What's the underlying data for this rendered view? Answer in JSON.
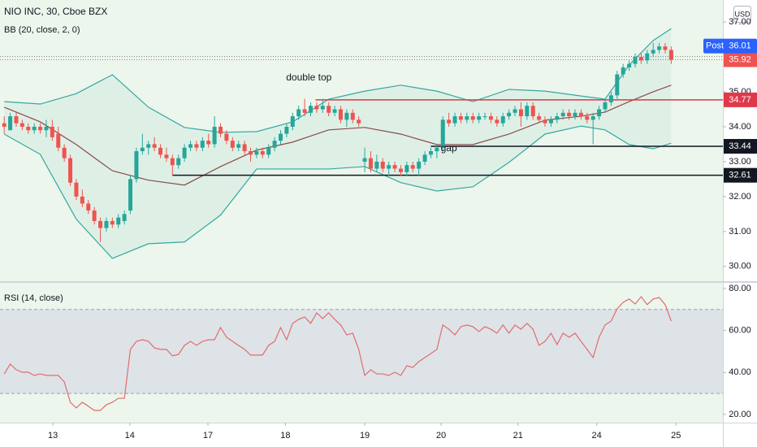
{
  "chart_data": [
    {
      "type": "candlestick",
      "title": "NIO INC, 30, Cboe BZX",
      "indicator": "BB (20, close, 2, 0)",
      "currency": "USD",
      "up_color": "#26a69a",
      "down_color": "#ef5350",
      "candles": [
        [
          34.1,
          34.3,
          33.8,
          34.0
        ],
        [
          33.9,
          34.4,
          33.9,
          34.3
        ],
        [
          34.3,
          34.4,
          34.0,
          34.1
        ],
        [
          34.1,
          34.2,
          33.9,
          34.0
        ],
        [
          34.0,
          34.1,
          33.8,
          33.9
        ],
        [
          33.9,
          34.1,
          33.8,
          34.0
        ],
        [
          34.0,
          34.1,
          33.8,
          33.9
        ],
        [
          33.9,
          34.2,
          33.7,
          34.0
        ],
        [
          34.0,
          34.2,
          33.6,
          33.7
        ],
        [
          33.8,
          34.0,
          33.3,
          33.4
        ],
        [
          33.4,
          33.5,
          33.0,
          33.1
        ],
        [
          33.1,
          33.2,
          32.3,
          32.4
        ],
        [
          32.4,
          32.5,
          31.9,
          32.0
        ],
        [
          32.0,
          32.2,
          31.7,
          31.8
        ],
        [
          31.8,
          31.9,
          31.5,
          31.6
        ],
        [
          31.6,
          31.7,
          31.2,
          31.3
        ],
        [
          31.3,
          31.4,
          30.7,
          31.1
        ],
        [
          31.1,
          31.4,
          31.0,
          31.3
        ],
        [
          31.3,
          31.4,
          31.1,
          31.2
        ],
        [
          31.2,
          31.5,
          31.1,
          31.4
        ],
        [
          31.3,
          31.6,
          31.2,
          31.5
        ],
        [
          31.6,
          32.6,
          31.5,
          32.5
        ],
        [
          32.5,
          33.4,
          32.4,
          33.3
        ],
        [
          33.3,
          33.8,
          33.2,
          33.4
        ],
        [
          33.4,
          33.6,
          33.2,
          33.5
        ],
        [
          33.5,
          33.7,
          33.3,
          33.4
        ],
        [
          33.4,
          33.5,
          33.1,
          33.2
        ],
        [
          33.2,
          33.4,
          33.0,
          33.1
        ],
        [
          33.1,
          33.2,
          32.6,
          32.9
        ],
        [
          32.9,
          33.2,
          32.8,
          33.1
        ],
        [
          33.1,
          33.5,
          33.0,
          33.4
        ],
        [
          33.4,
          33.6,
          33.3,
          33.5
        ],
        [
          33.5,
          33.6,
          33.3,
          33.4
        ],
        [
          33.4,
          33.7,
          33.3,
          33.6
        ],
        [
          33.6,
          33.8,
          33.4,
          33.5
        ],
        [
          33.5,
          34.3,
          33.4,
          34.0
        ],
        [
          34.0,
          34.1,
          33.7,
          33.8
        ],
        [
          33.8,
          33.9,
          33.5,
          33.6
        ],
        [
          33.6,
          33.7,
          33.3,
          33.4
        ],
        [
          33.4,
          33.6,
          33.3,
          33.5
        ],
        [
          33.5,
          33.6,
          33.2,
          33.3
        ],
        [
          33.3,
          33.4,
          33.0,
          33.2
        ],
        [
          33.2,
          33.4,
          33.1,
          33.3
        ],
        [
          33.3,
          33.4,
          33.1,
          33.2
        ],
        [
          33.2,
          33.5,
          33.1,
          33.4
        ],
        [
          33.4,
          33.7,
          33.3,
          33.6
        ],
        [
          33.6,
          33.9,
          33.5,
          33.8
        ],
        [
          33.8,
          34.1,
          33.7,
          34.0
        ],
        [
          34.0,
          34.4,
          33.9,
          34.3
        ],
        [
          34.3,
          34.6,
          34.2,
          34.5
        ],
        [
          34.5,
          34.8,
          34.3,
          34.4
        ],
        [
          34.4,
          34.7,
          34.3,
          34.6
        ],
        [
          34.6,
          34.7,
          34.4,
          34.5
        ],
        [
          34.5,
          34.8,
          34.4,
          34.6
        ],
        [
          34.6,
          34.7,
          34.3,
          34.4
        ],
        [
          34.4,
          34.6,
          34.3,
          34.5
        ],
        [
          34.5,
          34.6,
          34.1,
          34.2
        ],
        [
          34.2,
          34.5,
          34.0,
          34.4
        ],
        [
          34.4,
          34.5,
          34.1,
          34.2
        ],
        [
          34.2,
          34.3,
          34.0,
          34.1
        ],
        [
          33.0,
          33.4,
          32.7,
          33.1
        ],
        [
          33.1,
          33.3,
          32.7,
          32.8
        ],
        [
          32.8,
          33.2,
          32.7,
          33.0
        ],
        [
          33.0,
          33.1,
          32.7,
          32.8
        ],
        [
          32.8,
          33.0,
          32.6,
          32.9
        ],
        [
          32.9,
          33.0,
          32.7,
          32.8
        ],
        [
          32.8,
          32.9,
          32.6,
          32.7
        ],
        [
          32.7,
          33.0,
          32.6,
          32.9
        ],
        [
          32.9,
          33.0,
          32.7,
          32.8
        ],
        [
          32.8,
          33.1,
          32.6,
          33.0
        ],
        [
          33.0,
          33.3,
          32.9,
          33.2
        ],
        [
          33.2,
          33.4,
          33.1,
          33.3
        ],
        [
          33.3,
          33.5,
          33.1,
          33.4
        ],
        [
          33.4,
          34.3,
          33.3,
          34.2
        ],
        [
          34.2,
          34.4,
          34.0,
          34.1
        ],
        [
          34.1,
          34.4,
          34.0,
          34.3
        ],
        [
          34.3,
          34.4,
          34.1,
          34.2
        ],
        [
          34.2,
          34.4,
          34.1,
          34.3
        ],
        [
          34.3,
          34.4,
          34.1,
          34.2
        ],
        [
          34.2,
          34.4,
          34.1,
          34.3
        ],
        [
          34.3,
          34.4,
          34.2,
          34.3
        ],
        [
          34.3,
          34.4,
          34.1,
          34.2
        ],
        [
          34.2,
          34.3,
          34.0,
          34.1
        ],
        [
          34.1,
          34.4,
          34.0,
          34.3
        ],
        [
          34.3,
          34.5,
          34.2,
          34.4
        ],
        [
          34.4,
          34.6,
          34.3,
          34.5
        ],
        [
          34.5,
          34.7,
          34.0,
          34.3
        ],
        [
          34.3,
          34.7,
          34.2,
          34.6
        ],
        [
          34.6,
          34.7,
          34.2,
          34.3
        ],
        [
          34.3,
          34.4,
          34.1,
          34.2
        ],
        [
          34.2,
          34.3,
          34.0,
          34.1
        ],
        [
          34.1,
          34.3,
          34.0,
          34.2
        ],
        [
          34.2,
          34.4,
          34.1,
          34.3
        ],
        [
          34.3,
          34.5,
          34.2,
          34.4
        ],
        [
          34.4,
          34.5,
          34.2,
          34.3
        ],
        [
          34.3,
          34.5,
          34.2,
          34.4
        ],
        [
          34.4,
          34.5,
          34.2,
          34.3
        ],
        [
          34.3,
          34.4,
          34.1,
          34.2
        ],
        [
          34.2,
          34.4,
          33.5,
          34.3
        ],
        [
          34.3,
          34.6,
          34.2,
          34.5
        ],
        [
          34.5,
          34.8,
          34.4,
          34.7
        ],
        [
          34.7,
          35.0,
          34.6,
          34.9
        ],
        [
          34.9,
          35.6,
          34.8,
          35.5
        ],
        [
          35.5,
          35.8,
          35.4,
          35.7
        ],
        [
          35.7,
          35.9,
          35.6,
          35.8
        ],
        [
          35.8,
          36.1,
          35.7,
          36.0
        ],
        [
          36.0,
          36.1,
          35.8,
          35.9
        ],
        [
          35.9,
          36.2,
          35.8,
          36.1
        ],
        [
          36.1,
          36.4,
          36.0,
          36.2
        ],
        [
          36.2,
          36.4,
          36.1,
          36.3
        ],
        [
          36.3,
          36.4,
          36.1,
          36.2
        ],
        [
          36.2,
          36.3,
          35.8,
          35.92
        ]
      ],
      "bands": {
        "x": [
          0,
          6,
          12,
          18,
          24,
          30,
          36,
          42,
          48,
          54,
          60,
          66,
          72,
          78,
          84,
          90,
          96,
          100,
          104,
          108,
          111
        ],
        "upper": [
          34.72,
          34.65,
          34.95,
          35.49,
          34.56,
          33.98,
          33.84,
          33.86,
          34.14,
          34.79,
          35.02,
          35.19,
          35.02,
          34.72,
          35.07,
          35.02,
          34.88,
          34.79,
          35.77,
          36.47,
          36.81
        ],
        "basis": [
          34.56,
          34.14,
          33.49,
          32.74,
          32.47,
          32.33,
          32.86,
          33.33,
          33.56,
          33.91,
          33.98,
          33.79,
          33.49,
          33.49,
          33.79,
          34.19,
          34.3,
          34.42,
          34.72,
          35.0,
          35.19
        ],
        "lower": [
          33.79,
          33.21,
          31.35,
          30.23,
          30.65,
          30.7,
          31.47,
          32.79,
          32.79,
          32.79,
          32.86,
          32.4,
          32.16,
          32.28,
          32.98,
          33.79,
          34.02,
          33.91,
          33.49,
          33.37,
          33.53
        ],
        "band_color": "#35a7a1",
        "basis_color": "#8b4a4a"
      },
      "levels": [
        {
          "value": 34.77,
          "from": 51.8,
          "color": "#e0384a"
        },
        {
          "value": 33.44,
          "from": 71,
          "color": "#131722"
        },
        {
          "value": 32.61,
          "from": 28,
          "color": "#131722"
        }
      ],
      "last": {
        "value": 35.92,
        "color": "#ef5350"
      },
      "post": {
        "label": "Post",
        "value": 36.01,
        "color": "#2962ff"
      },
      "annotations": [
        {
          "text": "double top",
          "x": 50.7,
          "y": 35.4
        },
        {
          "text": "gap",
          "x": 74,
          "y": 33.37
        }
      ],
      "xlim": [
        -0.7,
        119.6
      ],
      "ylim": [
        29.6,
        37.63
      ],
      "yticks": [
        {
          "value": 30,
          "label": "30.00"
        },
        {
          "value": 31,
          "label": "31.00"
        },
        {
          "value": 32,
          "label": "32.00"
        },
        {
          "value": 33,
          "label": "33.00"
        },
        {
          "value": 34,
          "label": "34.00"
        },
        {
          "value": 35,
          "label": "35.00"
        },
        {
          "value": 37,
          "label": "37.00"
        }
      ]
    },
    {
      "type": "line",
      "title": "RSI (14, close)",
      "color": "#e06c6c",
      "values": [
        39.3,
        44.0,
        41.3,
        40.1,
        40.1,
        38.6,
        39.3,
        38.6,
        38.6,
        38.6,
        35.5,
        25.8,
        23.1,
        25.8,
        23.9,
        21.9,
        21.9,
        24.6,
        25.8,
        27.7,
        27.7,
        51.0,
        54.8,
        55.6,
        54.8,
        51.7,
        51.0,
        51.0,
        47.9,
        48.6,
        52.9,
        54.8,
        52.9,
        54.8,
        55.6,
        55.6,
        61.4,
        56.8,
        54.8,
        52.9,
        51.0,
        48.3,
        48.3,
        48.3,
        52.9,
        54.8,
        61.4,
        55.6,
        63.4,
        65.3,
        66.4,
        63.4,
        68.4,
        65.7,
        68.4,
        65.3,
        62.6,
        57.9,
        58.7,
        51.0,
        38.6,
        41.3,
        39.3,
        39.3,
        38.6,
        40.1,
        38.6,
        43.2,
        42.4,
        45.2,
        47.1,
        49.0,
        51.0,
        62.6,
        60.6,
        57.9,
        61.8,
        62.6,
        61.8,
        59.5,
        61.8,
        60.6,
        58.7,
        62.6,
        58.7,
        62.6,
        60.6,
        63.4,
        60.6,
        52.9,
        54.8,
        58.7,
        53.3,
        58.7,
        56.8,
        58.7,
        54.8,
        51.0,
        47.1,
        56.8,
        62.6,
        64.5,
        70.3,
        73.4,
        75.0,
        72.6,
        76.1,
        72.3,
        75.0,
        75.7,
        72.3,
        64.5
      ],
      "levels": [
        70,
        30
      ],
      "band_color": "#7e57c2",
      "xlim": [
        -0.7,
        119.6
      ],
      "xticks": [
        {
          "value": 8.1,
          "label": "13"
        },
        {
          "value": 20.9,
          "label": "14"
        },
        {
          "value": 33.9,
          "label": "17"
        },
        {
          "value": 46.8,
          "label": "18"
        },
        {
          "value": 60.0,
          "label": "19"
        },
        {
          "value": 72.7,
          "label": "20"
        },
        {
          "value": 85.5,
          "label": "21"
        },
        {
          "value": 98.6,
          "label": "24"
        },
        {
          "value": 111.8,
          "label": "25"
        }
      ],
      "ylim": [
        16.1,
        82.7
      ],
      "yticks": [
        {
          "value": 20,
          "label": "20.00"
        },
        {
          "value": 40,
          "label": "40.00"
        },
        {
          "value": 60,
          "label": "60.00"
        },
        {
          "value": 80,
          "label": "80.00"
        }
      ]
    }
  ]
}
